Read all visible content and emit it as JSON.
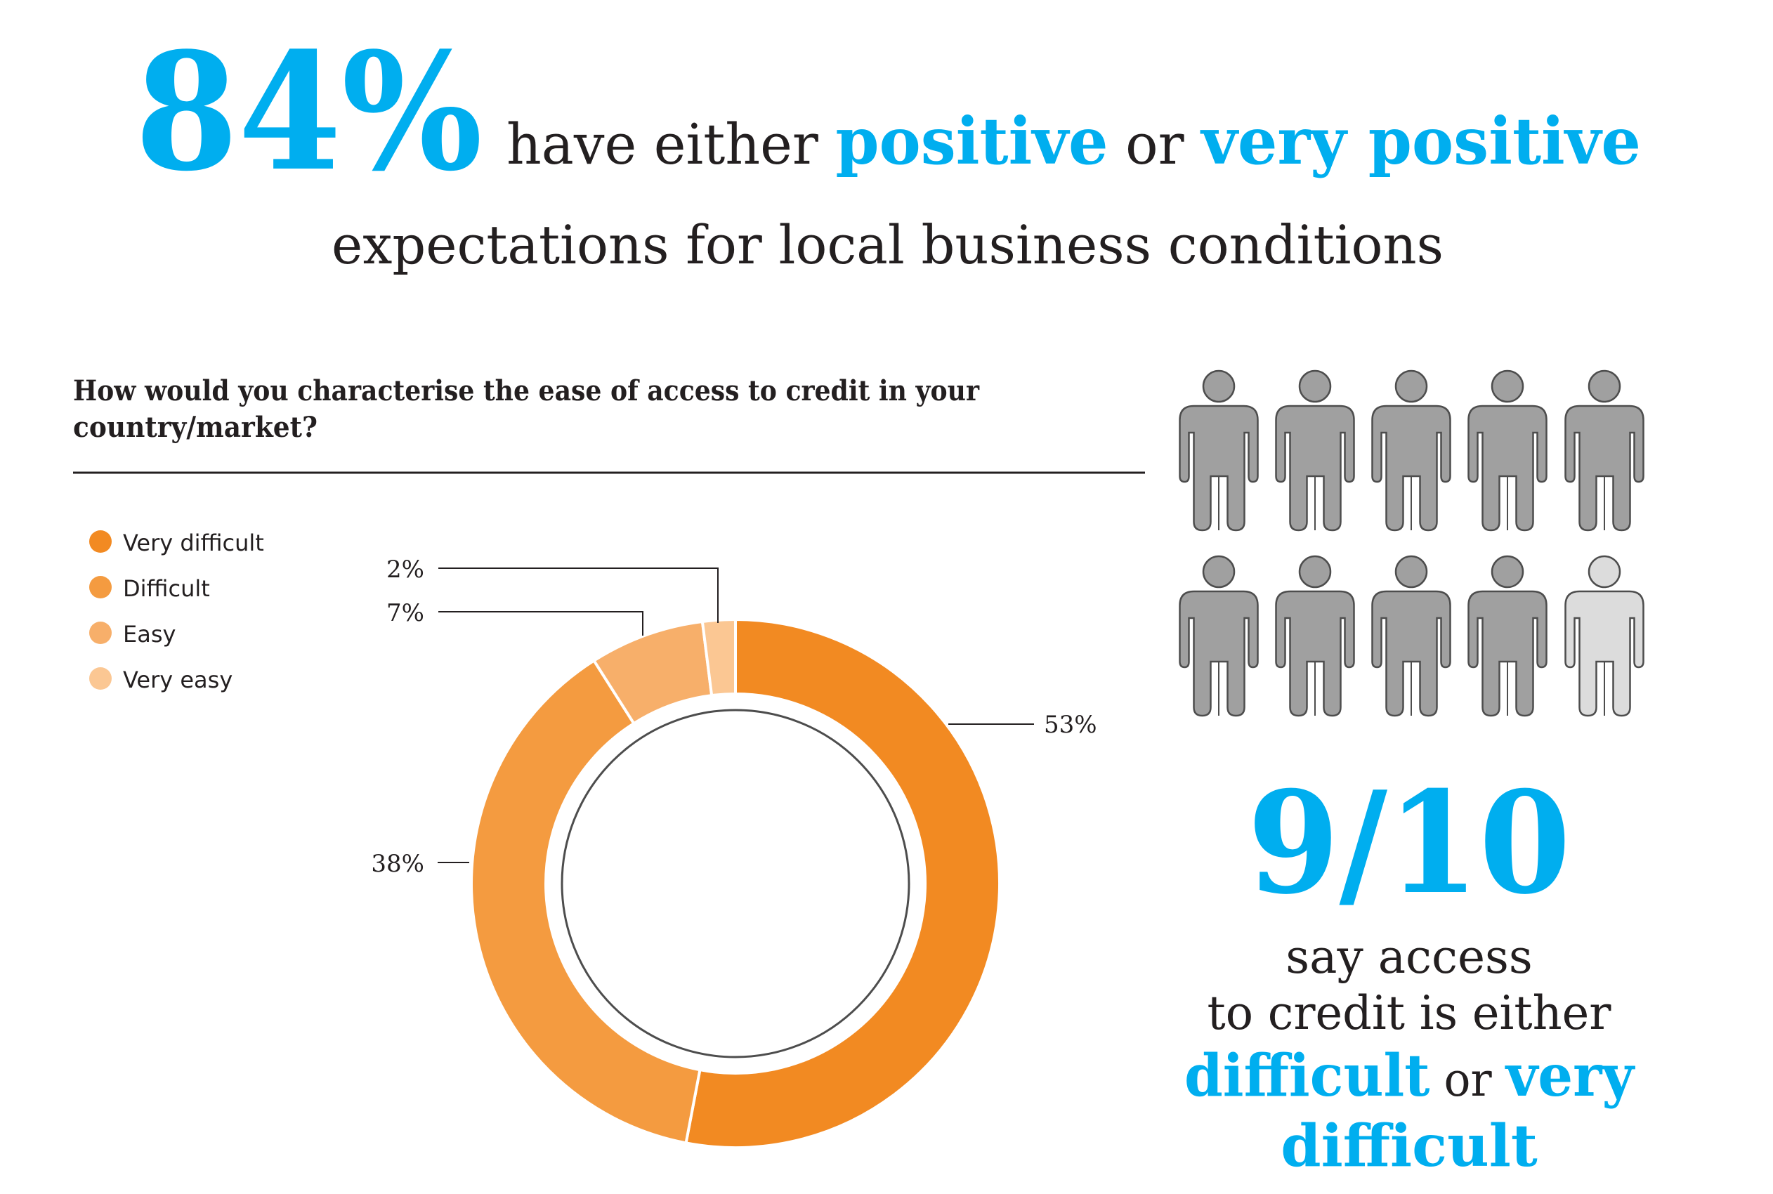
{
  "headline": {
    "big_stat": "84%",
    "line1_a": "have either",
    "line1_b": "positive",
    "line1_c": "or",
    "line1_d": "very positive",
    "line2": "expectations for local business conditions"
  },
  "callout": {
    "big_stat": "9/10",
    "line1": "say access",
    "line2": "to credit is either",
    "line3_a": "difficult",
    "line3_b": "or",
    "line3_c": "very",
    "line4": "difficult"
  },
  "people": {
    "icon": "person-icon",
    "total": 10,
    "highlighted": 9,
    "highlight_color": "#a0a0a0",
    "other_color": "#dcdcdc"
  },
  "colors": {
    "accent_blue": "#00aeef",
    "text": "#231f20"
  },
  "chart_data": {
    "type": "pie",
    "title": "How would you characterise the ease of access to credit in your country/market?",
    "title_lines": [
      "How would you characterise the ease of access to credit in your",
      "country/market?"
    ],
    "categories": [
      "Very difficult",
      "Difficult",
      "Easy",
      "Very easy"
    ],
    "values": [
      53,
      38,
      7,
      2
    ],
    "labels": [
      "53%",
      "38%",
      "7%",
      "2%"
    ],
    "colors": [
      "#f28a22",
      "#f49b40",
      "#f7af6a",
      "#fbc793"
    ],
    "donut": true,
    "legend": "top-left"
  }
}
